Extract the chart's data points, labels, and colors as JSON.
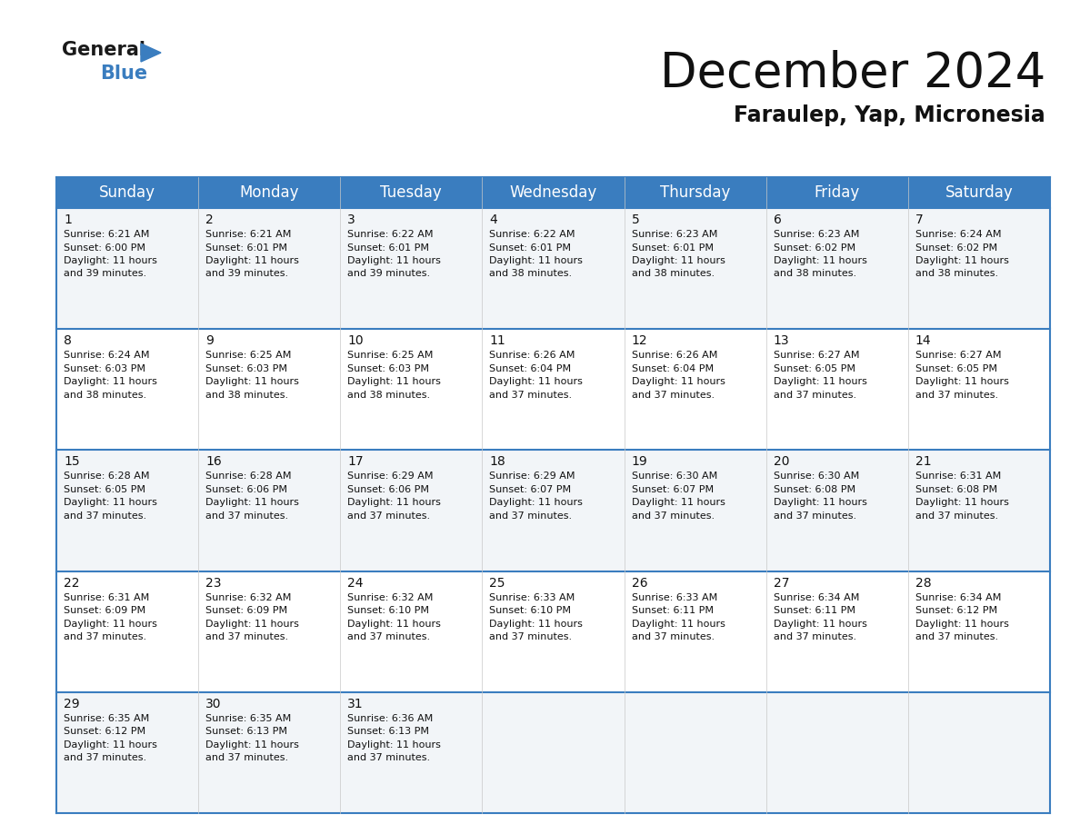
{
  "title": "December 2024",
  "subtitle": "Faraulep, Yap, Micronesia",
  "header_bg_color": "#3a7dbf",
  "header_text_color": "#ffffff",
  "day_names": [
    "Sunday",
    "Monday",
    "Tuesday",
    "Wednesday",
    "Thursday",
    "Friday",
    "Saturday"
  ],
  "row_bg_even": "#f2f5f8",
  "row_bg_odd": "#ffffff",
  "border_color": "#3a7dbf",
  "cell_border_color": "#3a7dbf",
  "days": [
    {
      "day": 1,
      "col": 0,
      "row": 0,
      "sunrise": "6:21 AM",
      "sunset": "6:00 PM",
      "daylight": "11 hours and 39 minutes."
    },
    {
      "day": 2,
      "col": 1,
      "row": 0,
      "sunrise": "6:21 AM",
      "sunset": "6:01 PM",
      "daylight": "11 hours and 39 minutes."
    },
    {
      "day": 3,
      "col": 2,
      "row": 0,
      "sunrise": "6:22 AM",
      "sunset": "6:01 PM",
      "daylight": "11 hours and 39 minutes."
    },
    {
      "day": 4,
      "col": 3,
      "row": 0,
      "sunrise": "6:22 AM",
      "sunset": "6:01 PM",
      "daylight": "11 hours and 38 minutes."
    },
    {
      "day": 5,
      "col": 4,
      "row": 0,
      "sunrise": "6:23 AM",
      "sunset": "6:01 PM",
      "daylight": "11 hours and 38 minutes."
    },
    {
      "day": 6,
      "col": 5,
      "row": 0,
      "sunrise": "6:23 AM",
      "sunset": "6:02 PM",
      "daylight": "11 hours and 38 minutes."
    },
    {
      "day": 7,
      "col": 6,
      "row": 0,
      "sunrise": "6:24 AM",
      "sunset": "6:02 PM",
      "daylight": "11 hours and 38 minutes."
    },
    {
      "day": 8,
      "col": 0,
      "row": 1,
      "sunrise": "6:24 AM",
      "sunset": "6:03 PM",
      "daylight": "11 hours and 38 minutes."
    },
    {
      "day": 9,
      "col": 1,
      "row": 1,
      "sunrise": "6:25 AM",
      "sunset": "6:03 PM",
      "daylight": "11 hours and 38 minutes."
    },
    {
      "day": 10,
      "col": 2,
      "row": 1,
      "sunrise": "6:25 AM",
      "sunset": "6:03 PM",
      "daylight": "11 hours and 38 minutes."
    },
    {
      "day": 11,
      "col": 3,
      "row": 1,
      "sunrise": "6:26 AM",
      "sunset": "6:04 PM",
      "daylight": "11 hours and 37 minutes."
    },
    {
      "day": 12,
      "col": 4,
      "row": 1,
      "sunrise": "6:26 AM",
      "sunset": "6:04 PM",
      "daylight": "11 hours and 37 minutes."
    },
    {
      "day": 13,
      "col": 5,
      "row": 1,
      "sunrise": "6:27 AM",
      "sunset": "6:05 PM",
      "daylight": "11 hours and 37 minutes."
    },
    {
      "day": 14,
      "col": 6,
      "row": 1,
      "sunrise": "6:27 AM",
      "sunset": "6:05 PM",
      "daylight": "11 hours and 37 minutes."
    },
    {
      "day": 15,
      "col": 0,
      "row": 2,
      "sunrise": "6:28 AM",
      "sunset": "6:05 PM",
      "daylight": "11 hours and 37 minutes."
    },
    {
      "day": 16,
      "col": 1,
      "row": 2,
      "sunrise": "6:28 AM",
      "sunset": "6:06 PM",
      "daylight": "11 hours and 37 minutes."
    },
    {
      "day": 17,
      "col": 2,
      "row": 2,
      "sunrise": "6:29 AM",
      "sunset": "6:06 PM",
      "daylight": "11 hours and 37 minutes."
    },
    {
      "day": 18,
      "col": 3,
      "row": 2,
      "sunrise": "6:29 AM",
      "sunset": "6:07 PM",
      "daylight": "11 hours and 37 minutes."
    },
    {
      "day": 19,
      "col": 4,
      "row": 2,
      "sunrise": "6:30 AM",
      "sunset": "6:07 PM",
      "daylight": "11 hours and 37 minutes."
    },
    {
      "day": 20,
      "col": 5,
      "row": 2,
      "sunrise": "6:30 AM",
      "sunset": "6:08 PM",
      "daylight": "11 hours and 37 minutes."
    },
    {
      "day": 21,
      "col": 6,
      "row": 2,
      "sunrise": "6:31 AM",
      "sunset": "6:08 PM",
      "daylight": "11 hours and 37 minutes."
    },
    {
      "day": 22,
      "col": 0,
      "row": 3,
      "sunrise": "6:31 AM",
      "sunset": "6:09 PM",
      "daylight": "11 hours and 37 minutes."
    },
    {
      "day": 23,
      "col": 1,
      "row": 3,
      "sunrise": "6:32 AM",
      "sunset": "6:09 PM",
      "daylight": "11 hours and 37 minutes."
    },
    {
      "day": 24,
      "col": 2,
      "row": 3,
      "sunrise": "6:32 AM",
      "sunset": "6:10 PM",
      "daylight": "11 hours and 37 minutes."
    },
    {
      "day": 25,
      "col": 3,
      "row": 3,
      "sunrise": "6:33 AM",
      "sunset": "6:10 PM",
      "daylight": "11 hours and 37 minutes."
    },
    {
      "day": 26,
      "col": 4,
      "row": 3,
      "sunrise": "6:33 AM",
      "sunset": "6:11 PM",
      "daylight": "11 hours and 37 minutes."
    },
    {
      "day": 27,
      "col": 5,
      "row": 3,
      "sunrise": "6:34 AM",
      "sunset": "6:11 PM",
      "daylight": "11 hours and 37 minutes."
    },
    {
      "day": 28,
      "col": 6,
      "row": 3,
      "sunrise": "6:34 AM",
      "sunset": "6:12 PM",
      "daylight": "11 hours and 37 minutes."
    },
    {
      "day": 29,
      "col": 0,
      "row": 4,
      "sunrise": "6:35 AM",
      "sunset": "6:12 PM",
      "daylight": "11 hours and 37 minutes."
    },
    {
      "day": 30,
      "col": 1,
      "row": 4,
      "sunrise": "6:35 AM",
      "sunset": "6:13 PM",
      "daylight": "11 hours and 37 minutes."
    },
    {
      "day": 31,
      "col": 2,
      "row": 4,
      "sunrise": "6:36 AM",
      "sunset": "6:13 PM",
      "daylight": "11 hours and 37 minutes."
    }
  ],
  "title_fontsize": 38,
  "subtitle_fontsize": 17,
  "header_fontsize": 12,
  "day_num_fontsize": 10,
  "cell_text_fontsize": 8
}
